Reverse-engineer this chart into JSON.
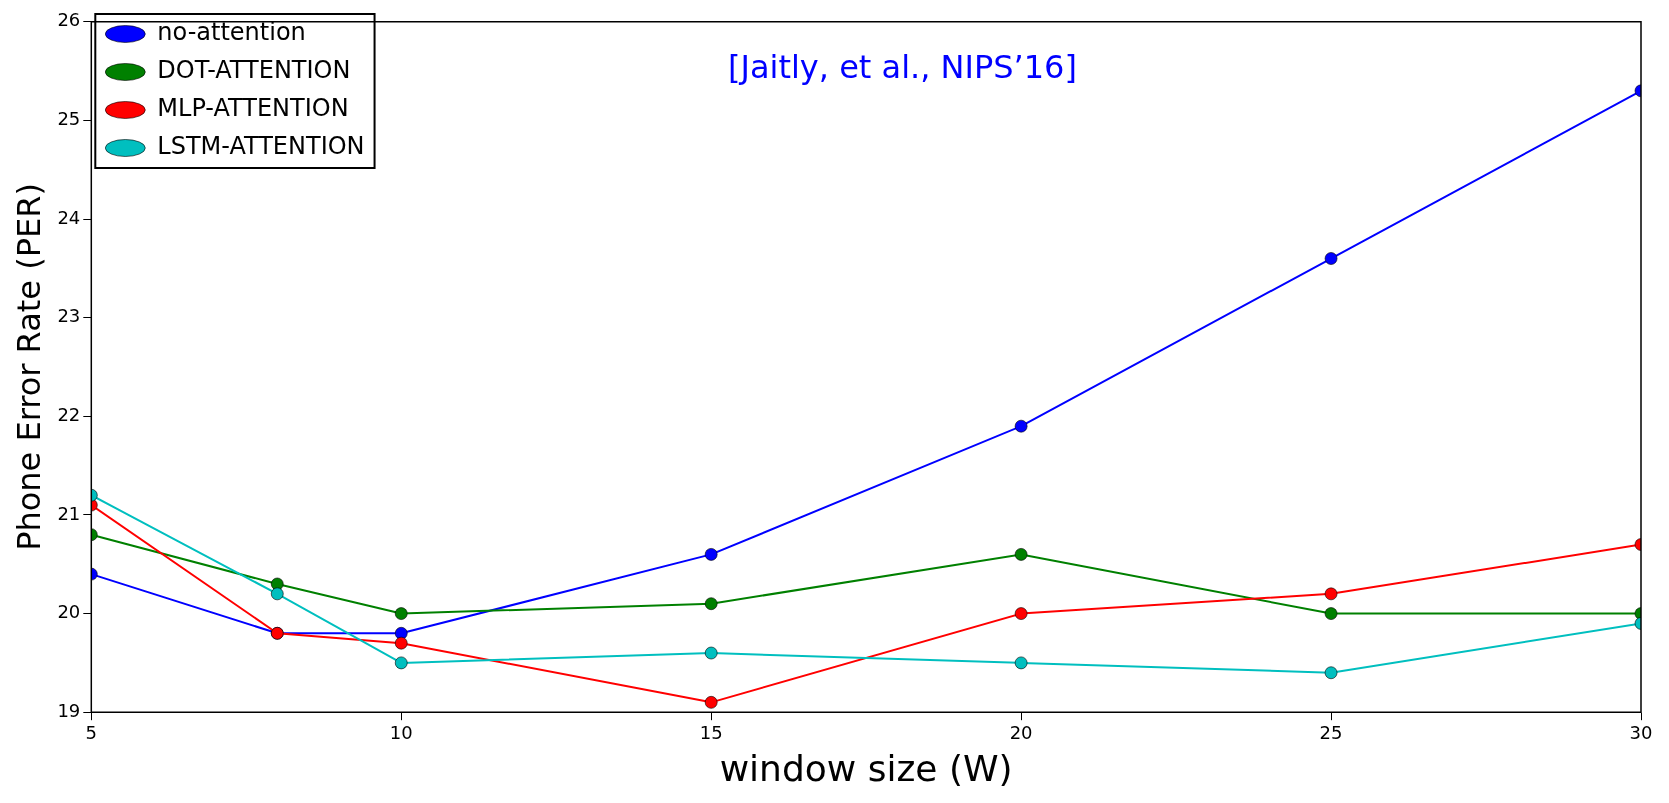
{
  "chart_data": {
    "type": "line",
    "xlabel": "window size (W)",
    "ylabel": "Phone Error Rate (PER)",
    "x": [
      5,
      8,
      10,
      15,
      20,
      25,
      30
    ],
    "series": [
      {
        "name": "no-attention",
        "color": "#0000ff",
        "values": [
          20.4,
          19.8,
          19.8,
          20.6,
          21.9,
          23.6,
          25.3
        ]
      },
      {
        "name": "DOT-ATTENTION",
        "color": "#008000",
        "values": [
          20.8,
          20.3,
          20.0,
          20.1,
          20.6,
          20.0,
          20.0
        ]
      },
      {
        "name": "MLP-ATTENTION",
        "color": "#ff0000",
        "values": [
          21.1,
          19.8,
          19.7,
          19.1,
          20.0,
          20.2,
          20.7
        ]
      },
      {
        "name": "LSTM-ATTENTION",
        "color": "#00bfbf",
        "values": [
          21.2,
          20.2,
          19.5,
          19.6,
          19.5,
          19.4,
          19.9
        ]
      }
    ],
    "xlim": [
      5,
      30
    ],
    "xticks": [
      5,
      10,
      15,
      20,
      25,
      30
    ],
    "ylim": [
      19,
      26
    ],
    "yticks": [
      19,
      20,
      21,
      22,
      23,
      24,
      25,
      26
    ],
    "grid": false,
    "legend": "top left",
    "marker": "circle",
    "line_style": "solid",
    "annotations": [
      "[Jaitly, et al., NIPS’16]"
    ]
  }
}
